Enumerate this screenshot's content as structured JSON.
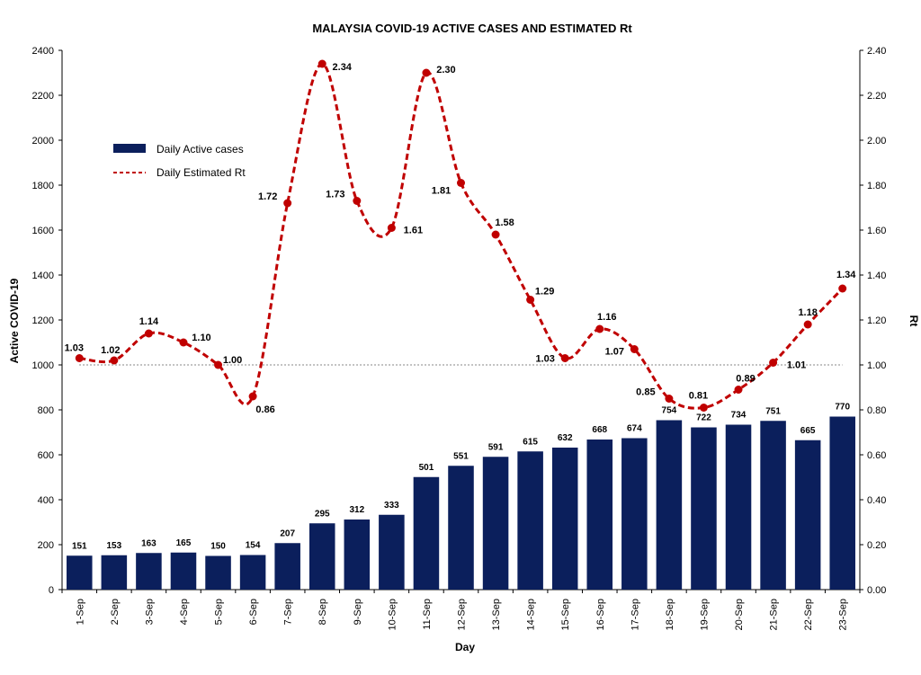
{
  "chart_data": {
    "type": "bar+line",
    "title": "MALAYSIA COVID-19 ACTIVE CASES AND ESTIMATED  Rt",
    "xlabel": "Day",
    "ylabel_left": "Active COVID-19",
    "ylabel_right": "Rt",
    "categories": [
      "1-Sep",
      "2-Sep",
      "3-Sep",
      "4-Sep",
      "5-Sep",
      "6-Sep",
      "7-Sep",
      "8-Sep",
      "9-Sep",
      "10-Sep",
      "11-Sep",
      "12-Sep",
      "13-Sep",
      "14-Sep",
      "15-Sep",
      "16-Sep",
      "17-Sep",
      "18-Sep",
      "19-Sep",
      "20-Sep",
      "21-Sep",
      "22-Sep",
      "23-Sep"
    ],
    "ylim_left": [
      0,
      2400
    ],
    "yticks_left": [
      "0",
      "200",
      "400",
      "600",
      "800",
      "1000",
      "1200",
      "1400",
      "1600",
      "1800",
      "2000",
      "2200",
      "2400"
    ],
    "ylim_right": [
      0,
      2.4
    ],
    "yticks_right": [
      "0.00",
      "0.20",
      "0.40",
      "0.60",
      "0.80",
      "1.00",
      "1.20",
      "1.40",
      "1.60",
      "1.80",
      "2.00",
      "2.20",
      "2.40"
    ],
    "series": [
      {
        "name": "Daily Active cases",
        "type": "bar",
        "axis": "left",
        "color": "#0b1f5c",
        "values": [
          151,
          153,
          163,
          165,
          150,
          154,
          207,
          295,
          312,
          333,
          501,
          551,
          591,
          615,
          632,
          668,
          674,
          754,
          722,
          734,
          751,
          665,
          770
        ],
        "labels": [
          "151",
          "153",
          "163",
          "165",
          "150",
          "154",
          "207",
          "295",
          "312",
          "333",
          "501",
          "551",
          "591",
          "615",
          "632",
          "668",
          "674",
          "754",
          "722",
          "734",
          "751",
          "665",
          "770"
        ]
      },
      {
        "name": "Daily Estimated Rt",
        "type": "line",
        "axis": "right",
        "style": "dashed",
        "color": "#c00000",
        "values": [
          1.03,
          1.02,
          1.14,
          1.1,
          1.0,
          0.86,
          1.72,
          2.34,
          1.73,
          1.61,
          2.3,
          1.81,
          1.58,
          1.29,
          1.03,
          1.16,
          1.07,
          0.85,
          0.81,
          0.89,
          1.01,
          1.18,
          1.34
        ],
        "labels": [
          "1.03",
          "1.02",
          "1.14",
          "1.10",
          "1.00",
          "0.86",
          "1.72",
          "2.34",
          "1.73",
          "1.61",
          "2.30",
          "1.81",
          "1.58",
          "1.29",
          "1.03",
          "1.16",
          "1.07",
          "0.85",
          "0.81",
          "0.89",
          "1.01",
          "1.18",
          "1.34"
        ]
      }
    ],
    "reference_line": {
      "axis": "right",
      "value": 1.0,
      "style": "dotted",
      "color": "#808080"
    },
    "legend": "upper-left",
    "grid": false
  }
}
